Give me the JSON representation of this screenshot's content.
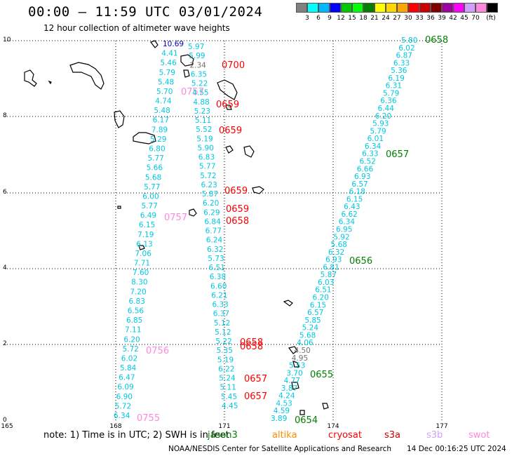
{
  "title": "00:00 – 11:59 UTC 03/01/2024",
  "subtitle": "12 hour collection of altimeter wave heights",
  "legend": {
    "colors": [
      "#808080",
      "#00ffff",
      "#00b8ff",
      "#0000ff",
      "#00c800",
      "#00ff00",
      "#008000",
      "#ffff00",
      "#ffd700",
      "#ffa500",
      "#ff0000",
      "#c80000",
      "#800000",
      "#a000a0",
      "#ff00ff",
      "#d0a0ff",
      "#ff88dd",
      "#000000"
    ],
    "labels": [
      "3",
      "6",
      "9",
      "12",
      "15",
      "18",
      "21",
      "24",
      "27",
      "30",
      "33",
      "36",
      "39",
      "42",
      "45",
      "70",
      "(ft)"
    ]
  },
  "axes": {
    "y_ticks": [
      "10",
      "8",
      "6",
      "4",
      "2",
      "0"
    ],
    "x_ticks": [
      "165",
      "168",
      "171",
      "174",
      "177"
    ]
  },
  "note": "note: 1) Time is in UTC; 2) SWH is in feet",
  "satellites": [
    {
      "name": "jason3",
      "color": "#008000"
    },
    {
      "name": "altika",
      "color": "#ff8c00"
    },
    {
      "name": "cryosat",
      "color": "#ff0000"
    },
    {
      "name": "s3a",
      "color": "#c00000"
    },
    {
      "name": "s3b",
      "color": "#d0a0ff"
    },
    {
      "name": "swot",
      "color": "#ff88dd"
    }
  ],
  "credit": "NOAA/NESDIS Center for Satellite Applications and Research",
  "timestamp": "14 Dec 00:16:25 UTC 2024",
  "colors": {
    "cyan": "#00c8e0",
    "red": "#ff0000",
    "green": "#008000",
    "pink": "#ff88dd",
    "gray": "#707070",
    "blue": "#0000c8"
  },
  "map_data": {
    "track1": {
      "values": [
        "10.69",
        "4.41",
        "5.46",
        "5.79",
        "5.48",
        "5.70",
        "4.74",
        "5.48",
        "6.17",
        "7.89",
        "5.29",
        "6.80",
        "5.77",
        "5.66",
        "5.68",
        "5.77",
        "6.00",
        "5.77",
        "6.49",
        "6.15",
        "7.19",
        "6.13",
        "7.06",
        "7.71",
        "7.60",
        "8.30",
        "7.20",
        "6.83",
        "6.56",
        "6.85",
        "7.11",
        "6.20",
        "5.72",
        "6.02",
        "5.84",
        "6.47",
        "6.09",
        "6.90",
        "5.72",
        "6.34"
      ],
      "times": [
        "0757",
        "0756",
        "0755"
      ]
    },
    "track2": {
      "values": [
        "5.97",
        "5.99",
        "2.34",
        "6.35",
        "5.22",
        "4.55",
        "4.88",
        "5.23",
        "5.11",
        "5.52",
        "5.19",
        "5.90",
        "6.83",
        "5.77",
        "5.72",
        "6.23",
        "5.87",
        "6.20",
        "6.29",
        "6.84",
        "6.77",
        "6.24",
        "6.32",
        "5.73",
        "6.51",
        "6.38",
        "6.60",
        "6.21",
        "6.33",
        "6.37",
        "5.12",
        "5.12",
        "5.22",
        "5.35",
        "5.19",
        "6.22",
        "5.24",
        "5.11",
        "5.45",
        "4.45"
      ],
      "times": [
        "0700",
        "0659",
        "0659",
        "0659",
        "0659",
        "0658",
        "0658",
        "0658",
        "0657",
        "0657"
      ]
    },
    "track3": {
      "values": [
        "5.80",
        "6.02",
        "6.87",
        "6.33",
        "5.36",
        "6.19",
        "6.31",
        "5.79",
        "6.36",
        "6.44",
        "6.20",
        "5.93",
        "5.79",
        "6.01",
        "6.34",
        "6.33",
        "6.52",
        "6.66",
        "6.93",
        "6.57",
        "6.18",
        "6.15",
        "6.43",
        "6.62",
        "6.34",
        "6.95",
        "5.92",
        "5.68",
        "6.32",
        "6.93",
        "6.81",
        "5.87",
        "6.03",
        "6.51",
        "6.20",
        "6.15",
        "6.57",
        "5.85",
        "5.24",
        "5.68",
        "4.06",
        "4.50",
        "4.95",
        "5.53",
        "3.70",
        "4.77",
        "3.87",
        "4.24",
        "4.53",
        "4.59",
        "3.89"
      ],
      "times": [
        "0658",
        "0657",
        "0656",
        "0655",
        "0654"
      ]
    }
  }
}
